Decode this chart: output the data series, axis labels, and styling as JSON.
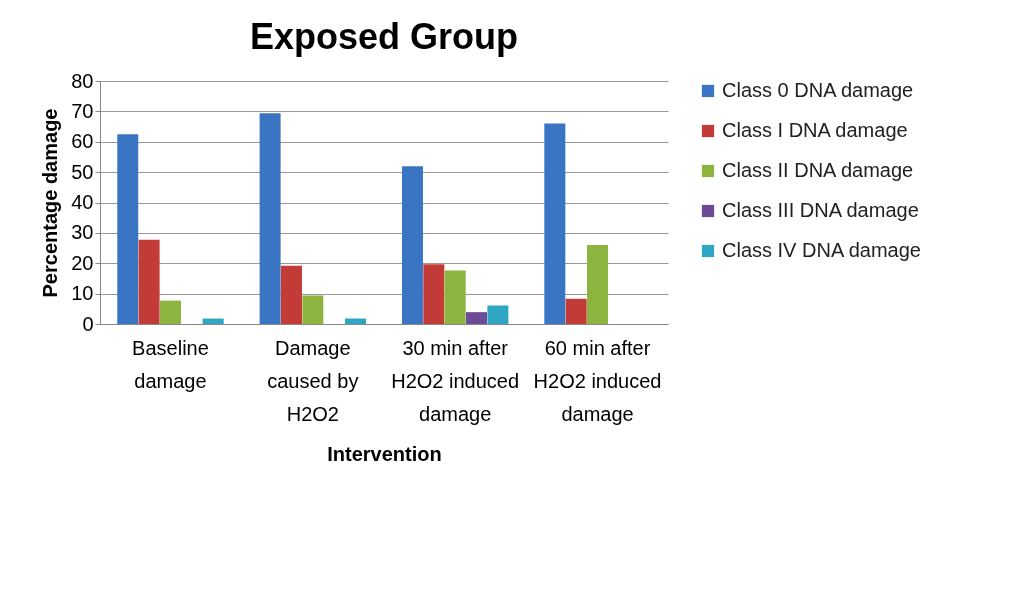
{
  "chart_data": {
    "type": "bar",
    "title": "Exposed Group",
    "xlabel": "Intervention",
    "ylabel": "Percentage damage",
    "categories": [
      "Baseline damage",
      "Damage caused by H2O2",
      "30 min after H2O2 induced damage",
      "60 min after H2O2 induced damage"
    ],
    "series": [
      {
        "name": "Class 0 DNA damage",
        "color": "#3a75c4",
        "values": [
          62.5,
          69.4,
          51.9,
          66.0
        ]
      },
      {
        "name": "Class I DNA damage",
        "color": "#c23b37",
        "values": [
          27.7,
          19.2,
          19.7,
          8.3
        ]
      },
      {
        "name": "Class II DNA damage",
        "color": "#8cb43f",
        "values": [
          7.7,
          9.4,
          17.6,
          26.0
        ]
      },
      {
        "name": "Class III DNA damage",
        "color": "#6c4a96",
        "values": [
          0,
          0,
          3.9,
          0
        ]
      },
      {
        "name": "Class IV DNA damage",
        "color": "#2fa6c4",
        "values": [
          1.8,
          1.8,
          6.1,
          0
        ]
      }
    ],
    "ylim": [
      0,
      80
    ],
    "yticks": [
      0,
      10,
      20,
      30,
      40,
      50,
      60,
      70,
      80
    ],
    "grid": "y",
    "legend": "right"
  }
}
